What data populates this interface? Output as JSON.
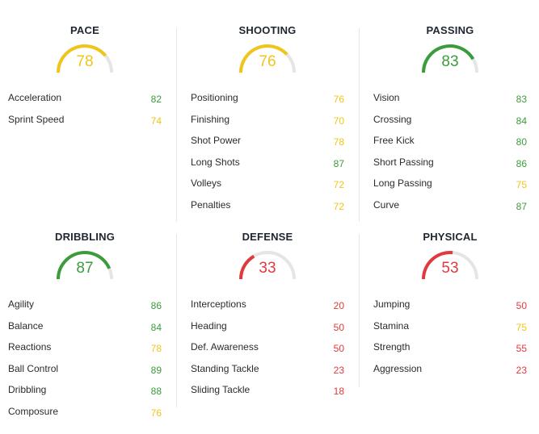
{
  "colors": {
    "green": "#3a9c3a",
    "yellow": "#f0c419",
    "red": "#e0393e",
    "track": "#e5e5e5"
  },
  "groups": [
    {
      "title": "PACE",
      "rating": "78",
      "stats": [
        {
          "label": "Acceleration",
          "value": "82"
        },
        {
          "label": "Sprint Speed",
          "value": "74"
        }
      ]
    },
    {
      "title": "SHOOTING",
      "rating": "76",
      "stats": [
        {
          "label": "Positioning",
          "value": "76"
        },
        {
          "label": "Finishing",
          "value": "70"
        },
        {
          "label": "Shot Power",
          "value": "78"
        },
        {
          "label": "Long Shots",
          "value": "87"
        },
        {
          "label": "Volleys",
          "value": "72"
        },
        {
          "label": "Penalties",
          "value": "72"
        }
      ]
    },
    {
      "title": "PASSING",
      "rating": "83",
      "stats": [
        {
          "label": "Vision",
          "value": "83"
        },
        {
          "label": "Crossing",
          "value": "84"
        },
        {
          "label": "Free Kick",
          "value": "80"
        },
        {
          "label": "Short Passing",
          "value": "86"
        },
        {
          "label": "Long Passing",
          "value": "75"
        },
        {
          "label": "Curve",
          "value": "87"
        }
      ]
    },
    {
      "title": "DRIBBLING",
      "rating": "87",
      "stats": [
        {
          "label": "Agility",
          "value": "86"
        },
        {
          "label": "Balance",
          "value": "84"
        },
        {
          "label": "Reactions",
          "value": "78"
        },
        {
          "label": "Ball Control",
          "value": "89"
        },
        {
          "label": "Dribbling",
          "value": "88"
        },
        {
          "label": "Composure",
          "value": "76"
        }
      ]
    },
    {
      "title": "DEFENSE",
      "rating": "33",
      "stats": [
        {
          "label": "Interceptions",
          "value": "20"
        },
        {
          "label": "Heading",
          "value": "50"
        },
        {
          "label": "Def. Awareness",
          "value": "50"
        },
        {
          "label": "Standing Tackle",
          "value": "23"
        },
        {
          "label": "Sliding Tackle",
          "value": "18"
        }
      ]
    },
    {
      "title": "PHYSICAL",
      "rating": "53",
      "stats": [
        {
          "label": "Jumping",
          "value": "50"
        },
        {
          "label": "Stamina",
          "value": "75"
        },
        {
          "label": "Strength",
          "value": "55"
        },
        {
          "label": "Aggression",
          "value": "23"
        }
      ]
    }
  ]
}
